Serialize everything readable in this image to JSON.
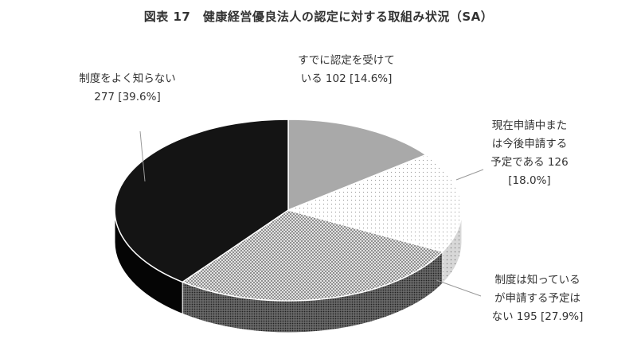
{
  "chart_data": {
    "type": "pie",
    "title": "図表 17　健康経営優良法人の認定に対する取組み状況（SA）",
    "slices": [
      {
        "label_lines": [
          "すでに認定を受けて",
          "いる 102 [14.6%]"
        ],
        "value": 102,
        "percent": 14.6
      },
      {
        "label_lines": [
          "現在申請中また",
          "は今後申請する",
          "予定である 126",
          "[18.0%]"
        ],
        "value": 126,
        "percent": 18.0
      },
      {
        "label_lines": [
          "制度は知っている",
          "が申請する予定は",
          "ない 195 [27.9%]"
        ],
        "value": 195,
        "percent": 27.9
      },
      {
        "label_lines": [
          "制度をよく知らない",
          "277 [39.6%]"
        ],
        "value": 277,
        "percent": 39.6
      }
    ],
    "legend": "none",
    "style": "3d-tilted"
  }
}
